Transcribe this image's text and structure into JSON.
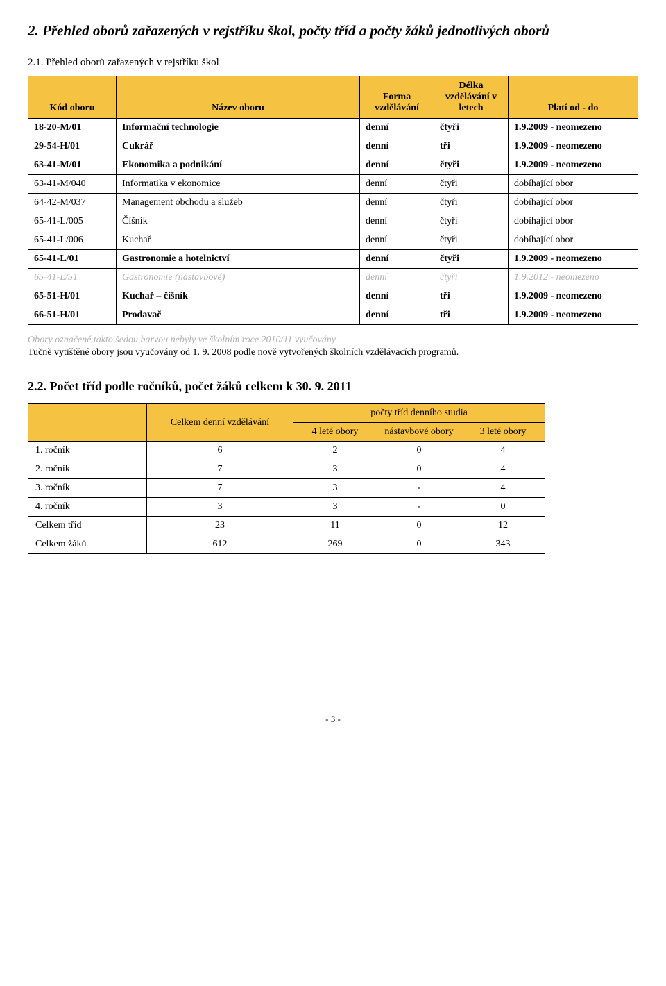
{
  "heading_main": "2. Přehled oborů zařazených v rejstříku škol, počty tříd a počty žáků jednotlivých oborů",
  "heading_sub1": "2.1. Přehled oborů zařazených v rejstříku škol",
  "table1": {
    "headers": {
      "kod": "Kód oboru",
      "nazev": "Název oboru",
      "forma": "Forma vzdělávání",
      "delka": "Délka vzdělávání v letech",
      "plati": "Platí od - do"
    },
    "rows": [
      {
        "style": "bold",
        "kod": "18-20-M/01",
        "nazev": "Informační technologie",
        "forma": "denní",
        "delka": "čtyři",
        "plati": "1.9.2009 - neomezeno"
      },
      {
        "style": "bold",
        "kod": "29-54-H/01",
        "nazev": "Cukrář",
        "forma": "denní",
        "delka": "tři",
        "plati": "1.9.2009 - neomezeno"
      },
      {
        "style": "bold",
        "kod": "63-41-M/01",
        "nazev": "Ekonomika a podnikání",
        "forma": "denní",
        "delka": "čtyři",
        "plati": "1.9.2009 - neomezeno"
      },
      {
        "style": "",
        "kod": "63-41-M/040",
        "nazev": "Informatika v ekonomice",
        "forma": "denní",
        "delka": "čtyři",
        "plati": "dobíhající obor"
      },
      {
        "style": "",
        "kod": "64-42-M/037",
        "nazev": "Management obchodu a služeb",
        "forma": "denní",
        "delka": "čtyři",
        "plati": "dobíhající obor"
      },
      {
        "style": "",
        "kod": "65-41-L/005",
        "nazev": "Číšník",
        "forma": "denní",
        "delka": "čtyři",
        "plati": "dobíhající obor"
      },
      {
        "style": "",
        "kod": "65-41-L/006",
        "nazev": "Kuchař",
        "forma": "denní",
        "delka": "čtyři",
        "plati": "dobíhající obor"
      },
      {
        "style": "bold",
        "kod": "65-41-L/01",
        "nazev": "Gastronomie a hotelnictví",
        "forma": "denní",
        "delka": "čtyři",
        "plati": "1.9.2009 - neomezeno"
      },
      {
        "style": "grey",
        "kod": "65-41-L/51",
        "nazev": "Gastronomie (nástavbové)",
        "forma": "denní",
        "delka": "čtyři",
        "plati": "1.9.2012 - neomezeno"
      },
      {
        "style": "bold",
        "kod": "65-51-H/01",
        "nazev": "Kuchař – číšník",
        "forma": "denní",
        "delka": "tři",
        "plati": "1.9.2009 - neomezeno"
      },
      {
        "style": "bold",
        "kod": "66-51-H/01",
        "nazev": "Prodavač",
        "forma": "denní",
        "delka": "tři",
        "plati": "1.9.2009 - neomezeno"
      }
    ]
  },
  "note_grey": "Obory označené takto šedou barvou nebyly ve školním roce 2010/11 vyučovány.",
  "note_normal": "Tučně vytištěné obory jsou vyučovány od 1. 9. 2008 podle nově vytvořených školních vzdělávacích programů.",
  "heading_sub2": "2.2. Počet tříd podle ročníků, počet žáků celkem k 30. 9. 2011",
  "table2": {
    "top_header": "počty tříd denního studia",
    "celkem_header": "Celkem denní vzdělávání",
    "sub_headers": {
      "c4": "4 leté obory",
      "nast": "nástavbové obory",
      "c3": "3 leté obory"
    },
    "rows": [
      {
        "lbl": "1. ročník",
        "celkem": "6",
        "c4": "2",
        "nast": "0",
        "c3": "4"
      },
      {
        "lbl": "2. ročník",
        "celkem": "7",
        "c4": "3",
        "nast": "0",
        "c3": "4"
      },
      {
        "lbl": "3. ročník",
        "celkem": "7",
        "c4": "3",
        "nast": "-",
        "c3": "4"
      },
      {
        "lbl": "4. ročník",
        "celkem": "3",
        "c4": "3",
        "nast": "-",
        "c3": "0"
      },
      {
        "lbl": "Celkem tříd",
        "celkem": "23",
        "c4": "11",
        "nast": "0",
        "c3": "12"
      },
      {
        "lbl": "Celkem žáků",
        "celkem": "612",
        "c4": "269",
        "nast": "0",
        "c3": "343"
      }
    ]
  },
  "page_number": "- 3 -",
  "colors": {
    "header_bg": "#f5c242",
    "grey_text": "#b0b0b0",
    "border": "#000000"
  }
}
